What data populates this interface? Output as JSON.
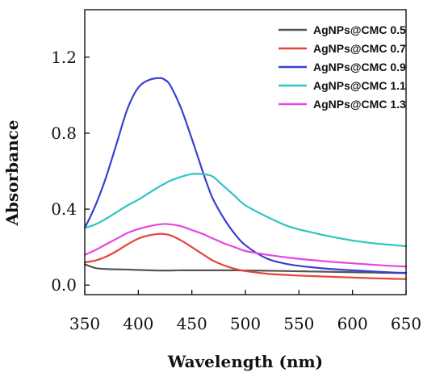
{
  "chart_data": {
    "type": "line",
    "title": "",
    "xlabel": "Wavelength (nm)",
    "ylabel": "Absorbance",
    "xlim": [
      350,
      650
    ],
    "ylim": [
      -0.05,
      1.45
    ],
    "x_ticks": [
      350,
      400,
      450,
      500,
      550,
      600,
      650
    ],
    "x_tick_labels": [
      "350",
      "400",
      "450",
      "500",
      "550",
      "600",
      "650"
    ],
    "y_ticks": [
      0.0,
      0.4,
      0.8,
      1.2
    ],
    "y_tick_labels": [
      "0.0",
      "0.4",
      "0.8",
      "1.2"
    ],
    "grid": false,
    "legend_position": "top-right",
    "x": [
      350,
      360,
      370,
      380,
      390,
      400,
      410,
      420,
      425,
      430,
      440,
      450,
      460,
      465,
      470,
      480,
      490,
      500,
      520,
      540,
      560,
      580,
      600,
      620,
      640,
      650
    ],
    "series": [
      {
        "name": "AgNPs@CMC 0.5",
        "color": "#555555",
        "values": [
          0.11,
          0.09,
          0.085,
          0.083,
          0.082,
          0.08,
          0.078,
          0.077,
          0.077,
          0.077,
          0.078,
          0.078,
          0.078,
          0.078,
          0.078,
          0.078,
          0.078,
          0.077,
          0.076,
          0.074,
          0.072,
          0.07,
          0.068,
          0.066,
          0.064,
          0.063
        ]
      },
      {
        "name": "AgNPs@CMC 0.7",
        "color": "#e8433a",
        "values": [
          0.12,
          0.13,
          0.15,
          0.18,
          0.215,
          0.245,
          0.262,
          0.27,
          0.268,
          0.262,
          0.235,
          0.2,
          0.163,
          0.145,
          0.128,
          0.104,
          0.086,
          0.074,
          0.06,
          0.053,
          0.048,
          0.044,
          0.04,
          0.036,
          0.033,
          0.032
        ]
      },
      {
        "name": "AgNPs@CMC 0.9",
        "color": "#3a3fd0",
        "values": [
          0.3,
          0.42,
          0.57,
          0.75,
          0.93,
          1.04,
          1.08,
          1.09,
          1.08,
          1.05,
          0.93,
          0.77,
          0.6,
          0.52,
          0.45,
          0.35,
          0.27,
          0.21,
          0.14,
          0.11,
          0.095,
          0.085,
          0.078,
          0.072,
          0.066,
          0.065
        ]
      },
      {
        "name": "AgNPs@CMC 1.1",
        "color": "#2ec5c0",
        "values": [
          0.3,
          0.32,
          0.35,
          0.385,
          0.42,
          0.45,
          0.485,
          0.52,
          0.535,
          0.55,
          0.57,
          0.585,
          0.585,
          0.58,
          0.57,
          0.52,
          0.47,
          0.42,
          0.36,
          0.31,
          0.28,
          0.255,
          0.235,
          0.22,
          0.21,
          0.205
        ]
      },
      {
        "name": "AgNPs@CMC 1.3",
        "color": "#e844e0",
        "values": [
          0.16,
          0.185,
          0.215,
          0.245,
          0.275,
          0.295,
          0.31,
          0.32,
          0.322,
          0.32,
          0.31,
          0.29,
          0.27,
          0.257,
          0.245,
          0.22,
          0.2,
          0.18,
          0.16,
          0.145,
          0.133,
          0.123,
          0.115,
          0.107,
          0.1,
          0.098
        ]
      }
    ]
  }
}
